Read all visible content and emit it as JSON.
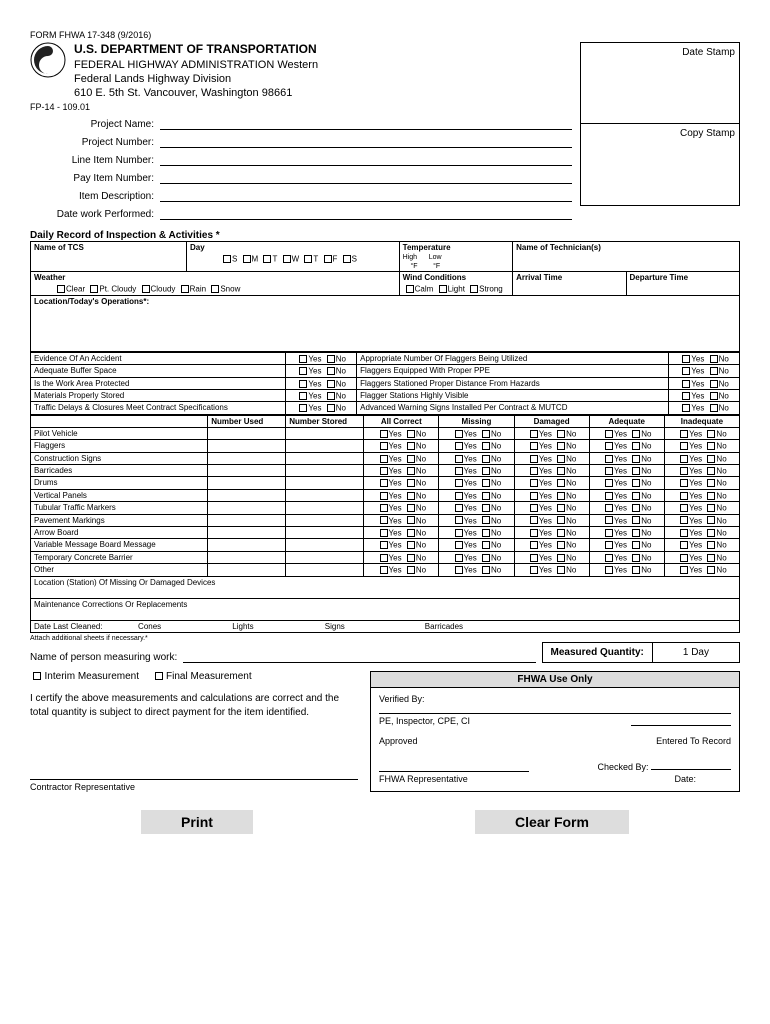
{
  "form_id": "FORM FHWA 17-348 (9/2016)",
  "dept_title": "U.S. DEPARTMENT OF TRANSPORTATION",
  "dept_sub1": "FEDERAL HIGHWAY ADMINISTRATION Western",
  "dept_sub2": "Federal Lands Highway Division",
  "dept_addr": "610 E. 5th St. Vancouver, Washington 98661",
  "fp": "FP-14 - 109.01",
  "date_stamp_label": "Date Stamp",
  "copy_stamp_label": "Copy Stamp",
  "fields": {
    "project_name": "Project Name:",
    "project_number": "Project Number:",
    "line_item": "Line Item Number:",
    "pay_item": "Pay Item Number:",
    "item_desc": "Item Description:",
    "date_work": "Date work Performed:"
  },
  "section_title": "Daily Record of Inspection & Activities *",
  "headers": {
    "name_tcs": "Name of TCS",
    "day": "Day",
    "temperature": "Temperature",
    "technicians": "Name of Technician(s)",
    "weather": "Weather",
    "wind": "Wind Conditions",
    "arrival": "Arrival Time",
    "departure": "Departure Time",
    "location_ops": "Location/Today's Operations*:"
  },
  "temp_labels": {
    "high": "High",
    "low": "Low",
    "deg": "°F"
  },
  "days": [
    "S",
    "M",
    "T",
    "W",
    "T",
    "F",
    "S"
  ],
  "weather_opts": [
    "Clear",
    "Pt. Cloudy",
    "Cloudy",
    "Rain",
    "Snow"
  ],
  "wind_opts": [
    "Calm",
    "Light",
    "Strong"
  ],
  "yn": {
    "yes": "Yes",
    "no": "No"
  },
  "questions_left": [
    "Evidence Of An Accident",
    "Adequate Buffer Space",
    "Is the Work Area Protected",
    "Materials Properly Stored",
    "Traffic Delays  & Closures Meet Contract Specifications"
  ],
  "questions_right": [
    "Appropriate Number Of Flaggers Being Utilized",
    "Flaggers Equipped With Proper PPE",
    "Flaggers Stationed Proper Distance From Hazards",
    "Flagger Stations Highly Visible",
    "Advanced Warning Signs Installed Per Contract & MUTCD"
  ],
  "equip_headers": [
    "",
    "Number Used",
    "Number Stored",
    "All Correct",
    "Missing",
    "Damaged",
    "Adequate",
    "Inadequate"
  ],
  "equip_items": [
    "Pilot Vehicle",
    "Flaggers",
    "Construction Signs",
    "Barricades",
    "Drums",
    "Vertical Panels",
    "Tubular Traffic Markers",
    "Pavement Markings",
    "Arrow Board",
    "Variable Message Board  Message",
    "Temporary Concrete Barrier",
    "Other"
  ],
  "equip_footer1": "Location (Station) Of Missing Or Damaged Devices",
  "equip_footer2": "Maintenance Corrections Or Replacements",
  "date_cleaned": {
    "label": "Date Last Cleaned:",
    "cones": "Cones",
    "lights": "Lights",
    "signs": "Signs",
    "barricades": "Barricades"
  },
  "attach_note": "Attach additional sheets if necessary.*",
  "measuring_label": "Name of person measuring work:",
  "measured_qty_label": "Measured Quantity:",
  "measured_qty_val": "1 Day",
  "interim": "Interim  Measurement",
  "final": "Final Measurement",
  "certify": "I certify the above measurements and calculations are correct and the total quantity is subject to direct payment for the item identified.",
  "contractor_rep": "Contractor Representative",
  "fhwa_box": {
    "title": "FHWA Use Only",
    "verified": "Verified By:",
    "pe": "PE, Inspector, CPE, CI",
    "approved": "Approved",
    "entered": "Entered To Record",
    "checked": "Checked By:",
    "fhwa_rep": "FHWA Representative",
    "date": "Date:"
  },
  "buttons": {
    "print": "Print",
    "clear": "Clear Form"
  }
}
